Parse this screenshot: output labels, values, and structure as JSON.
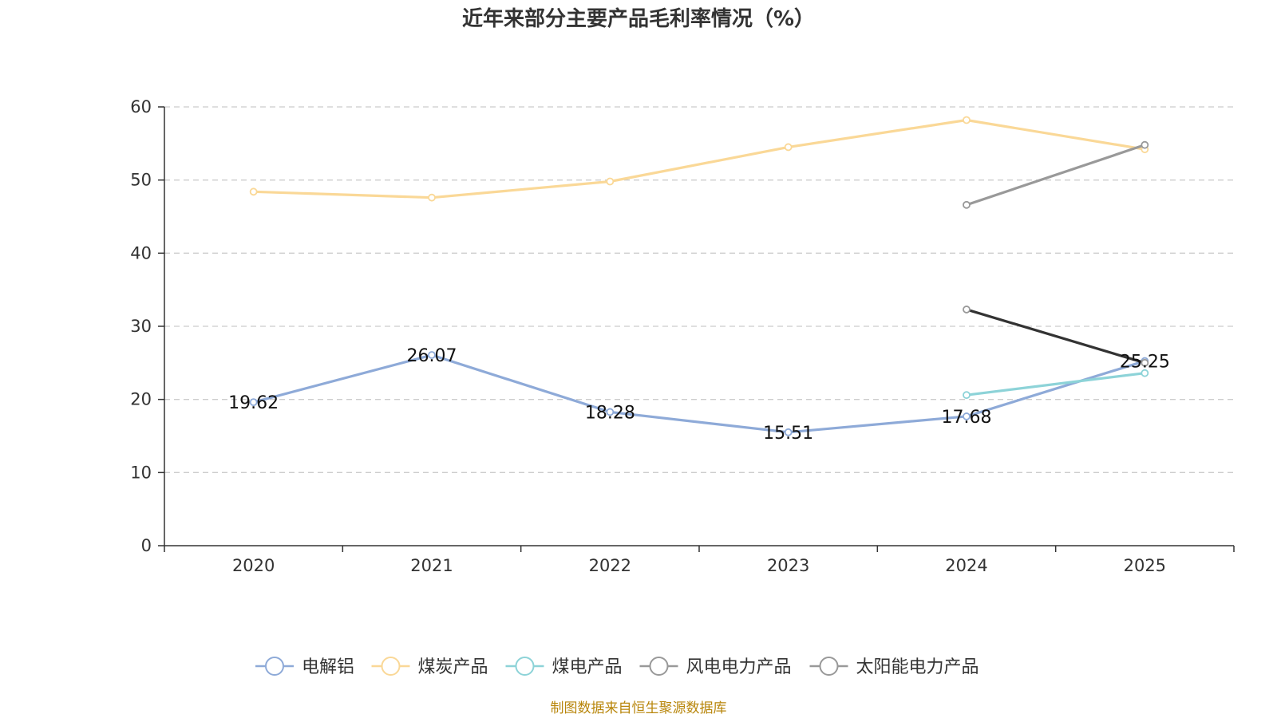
{
  "chart_data": {
    "type": "line",
    "title": "近年来部分主要产品毛利率情况（%）",
    "x": [
      "2020",
      "2021",
      "2022",
      "2023",
      "2024",
      "2025"
    ],
    "ylim": [
      0,
      60
    ],
    "yticks": [
      "0",
      "10",
      "20",
      "30",
      "40",
      "50",
      "60"
    ],
    "grid": true,
    "legend_position": "bottom",
    "series": [
      {
        "name": "电解铝",
        "color": "#8eaad8",
        "values": [
          19.62,
          26.07,
          18.28,
          15.51,
          17.68,
          25.25
        ],
        "labels": [
          "19.62",
          "26.07",
          "18.28",
          "15.51",
          "17.68",
          "25.25"
        ]
      },
      {
        "name": "煤炭产品",
        "color": "#fad897",
        "values": [
          48.4,
          47.6,
          49.8,
          54.5,
          58.2,
          54.2
        ]
      },
      {
        "name": "煤电产品",
        "color": "#8dd3d8",
        "values": [
          null,
          null,
          null,
          null,
          20.6,
          23.6
        ]
      },
      {
        "name": "风电电力产品",
        "color": "#999999",
        "values": [
          null,
          null,
          null,
          null,
          46.6,
          54.8
        ]
      },
      {
        "name": "太阳能电力产品",
        "color": "#333333",
        "legend_color": "#999999",
        "values": [
          null,
          null,
          null,
          null,
          32.3,
          25.0
        ]
      }
    ]
  },
  "source": "制图数据来自恒生聚源数据库"
}
